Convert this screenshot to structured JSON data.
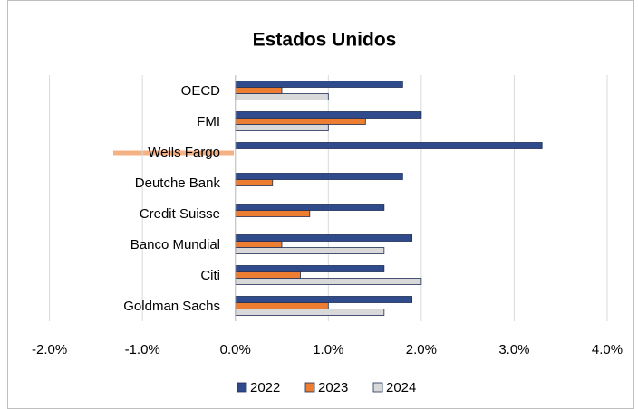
{
  "chart_data": {
    "type": "hbar",
    "title": "Estados Unidos",
    "categories": [
      "OECD",
      "FMI",
      "Wells Fargo",
      "Deutche Bank",
      "Credit Suisse",
      "Banco Mundial",
      "Citi",
      "Goldman Sachs"
    ],
    "series": [
      {
        "name": "2022",
        "color": "#2f4b8c",
        "values": [
          1.8,
          2.0,
          3.3,
          1.8,
          1.6,
          1.9,
          1.6,
          1.9
        ]
      },
      {
        "name": "2023",
        "color": "#ed7d31",
        "values": [
          0.5,
          1.4,
          null,
          0.4,
          0.8,
          0.5,
          0.7,
          1.0
        ]
      },
      {
        "name": "2024",
        "color": "#d9d9d9",
        "values": [
          1.0,
          1.0,
          null,
          null,
          null,
          1.6,
          2.0,
          1.6
        ]
      }
    ],
    "xlim": [
      -2,
      4
    ],
    "xticks": [
      {
        "value": -2,
        "label": "-2.0%"
      },
      {
        "value": -1,
        "label": "-1.0%"
      },
      {
        "value": 0,
        "label": "0.0%"
      },
      {
        "value": 1,
        "label": "1.0%"
      },
      {
        "value": 2,
        "label": "2.0%"
      },
      {
        "value": 3,
        "label": "3.0%"
      },
      {
        "value": 4,
        "label": "4.0%"
      }
    ],
    "grid": true,
    "legend": "bottom"
  }
}
